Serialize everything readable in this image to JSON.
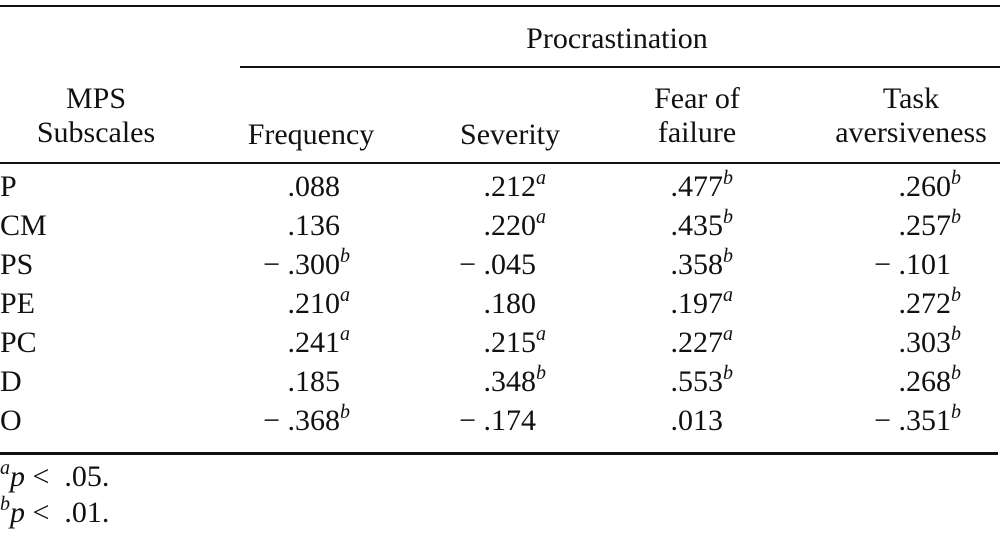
{
  "table": {
    "spanner": "Procrastination",
    "stub_header": [
      "MPS",
      "Subscales"
    ],
    "columns": [
      {
        "lines": [
          "",
          "Frequency"
        ]
      },
      {
        "lines": [
          "",
          "Severity"
        ]
      },
      {
        "lines": [
          "Fear of",
          "failure"
        ]
      },
      {
        "lines": [
          "Task",
          "aversiveness"
        ]
      }
    ],
    "rows": [
      {
        "label": "P",
        "cells": [
          {
            "v": ".088",
            "s": ""
          },
          {
            "v": ".212",
            "s": "a"
          },
          {
            "v": ".477",
            "s": "b"
          },
          {
            "v": ".260",
            "s": "b"
          }
        ]
      },
      {
        "label": "CM",
        "cells": [
          {
            "v": ".136",
            "s": ""
          },
          {
            "v": ".220",
            "s": "a"
          },
          {
            "v": ".435",
            "s": "b"
          },
          {
            "v": ".257",
            "s": "b"
          }
        ]
      },
      {
        "label": "PS",
        "cells": [
          {
            "v": "− .300",
            "s": "b"
          },
          {
            "v": "− .045",
            "s": ""
          },
          {
            "v": ".358",
            "s": "b"
          },
          {
            "v": "− .101",
            "s": ""
          }
        ]
      },
      {
        "label": "PE",
        "cells": [
          {
            "v": ".210",
            "s": "a"
          },
          {
            "v": ".180",
            "s": ""
          },
          {
            "v": ".197",
            "s": "a"
          },
          {
            "v": ".272",
            "s": "b"
          }
        ]
      },
      {
        "label": "PC",
        "cells": [
          {
            "v": ".241",
            "s": "a"
          },
          {
            "v": ".215",
            "s": "a"
          },
          {
            "v": ".227",
            "s": "a"
          },
          {
            "v": ".303",
            "s": "b"
          }
        ]
      },
      {
        "label": "D",
        "cells": [
          {
            "v": ".185",
            "s": ""
          },
          {
            "v": ".348",
            "s": "b"
          },
          {
            "v": ".553",
            "s": "b"
          },
          {
            "v": ".268",
            "s": "b"
          }
        ]
      },
      {
        "label": "O",
        "cells": [
          {
            "v": "− .368",
            "s": "b"
          },
          {
            "v": "− .174",
            "s": ""
          },
          {
            "v": ".013",
            "s": ""
          },
          {
            "v": "− .351",
            "s": "b"
          }
        ]
      }
    ],
    "footnotes": [
      {
        "mark": "a",
        "var": "p",
        "text": " <  .05."
      },
      {
        "mark": "b",
        "var": "p",
        "text": " <  .01."
      }
    ]
  }
}
